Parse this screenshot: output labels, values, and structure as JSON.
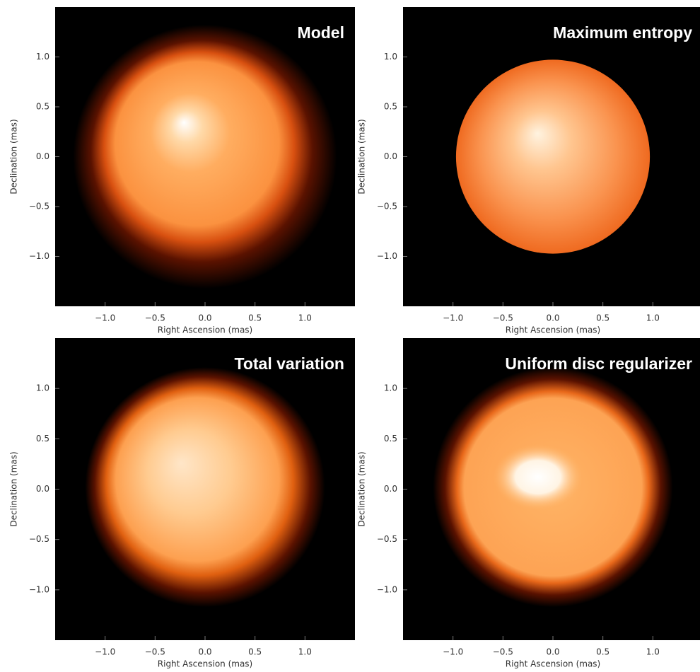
{
  "chart_data": [
    {
      "type": "image",
      "title": "Model",
      "xlabel": "Right Ascension (mas)",
      "ylabel": "Declination (mas)",
      "xlim": [
        -1.5,
        1.5
      ],
      "ylim": [
        -1.5,
        1.5
      ],
      "xticks": [
        {
          "value": -1,
          "label": "−1.0"
        },
        {
          "value": -0.5,
          "label": "−0.5"
        },
        {
          "value": 0,
          "label": "0.0"
        },
        {
          "value": 0.5,
          "label": "0.5"
        },
        {
          "value": 1,
          "label": "1.0"
        }
      ],
      "yticks": [
        {
          "value": -1,
          "label": "−1.0"
        },
        {
          "value": -0.5,
          "label": "−0.5"
        },
        {
          "value": 0,
          "label": "0.0"
        },
        {
          "value": 0.5,
          "label": "0.5"
        },
        {
          "value": 1,
          "label": "1.0"
        }
      ]
    },
    {
      "type": "image",
      "title": "Maximum entropy",
      "xlabel": "Right Ascension (mas)",
      "ylabel": "Declination (mas)",
      "xlim": [
        -1.5,
        1.5
      ],
      "ylim": [
        -1.5,
        1.5
      ],
      "xticks": [
        {
          "value": -1,
          "label": "−1.0"
        },
        {
          "value": -0.5,
          "label": "−0.5"
        },
        {
          "value": 0,
          "label": "0.0"
        },
        {
          "value": 0.5,
          "label": "0.5"
        },
        {
          "value": 1,
          "label": "1.0"
        }
      ],
      "yticks": [
        {
          "value": -1,
          "label": "−1.0"
        },
        {
          "value": -0.5,
          "label": "−0.5"
        },
        {
          "value": 0,
          "label": "0.0"
        },
        {
          "value": 0.5,
          "label": "0.5"
        },
        {
          "value": 1,
          "label": "1.0"
        }
      ]
    },
    {
      "type": "image",
      "title": "Total variation",
      "xlabel": "Right Ascension (mas)",
      "ylabel": "Declination (mas)",
      "xlim": [
        -1.5,
        1.5
      ],
      "ylim": [
        -1.5,
        1.5
      ],
      "xticks": [
        {
          "value": -1,
          "label": "−1.0"
        },
        {
          "value": -0.5,
          "label": "−0.5"
        },
        {
          "value": 0,
          "label": "0.0"
        },
        {
          "value": 0.5,
          "label": "0.5"
        },
        {
          "value": 1,
          "label": "1.0"
        }
      ],
      "yticks": [
        {
          "value": -1,
          "label": "−1.0"
        },
        {
          "value": -0.5,
          "label": "−0.5"
        },
        {
          "value": 0,
          "label": "0.0"
        },
        {
          "value": 0.5,
          "label": "0.5"
        },
        {
          "value": 1,
          "label": "1.0"
        }
      ]
    },
    {
      "type": "image",
      "title": "Uniform disc regularizer",
      "xlabel": "Right Ascension (mas)",
      "ylabel": "Declination (mas)",
      "xlim": [
        -1.5,
        1.5
      ],
      "ylim": [
        -1.5,
        1.5
      ],
      "xticks": [
        {
          "value": -1,
          "label": "−1.0"
        },
        {
          "value": -0.5,
          "label": "−0.5"
        },
        {
          "value": 0,
          "label": "0.0"
        },
        {
          "value": 0.5,
          "label": "0.5"
        },
        {
          "value": 1,
          "label": "1.0"
        }
      ],
      "yticks": [
        {
          "value": -1,
          "label": "−1.0"
        },
        {
          "value": -0.5,
          "label": "−0.5"
        },
        {
          "value": 0,
          "label": "0.0"
        },
        {
          "value": 0.5,
          "label": "0.5"
        },
        {
          "value": 1,
          "label": "1.0"
        }
      ]
    }
  ]
}
